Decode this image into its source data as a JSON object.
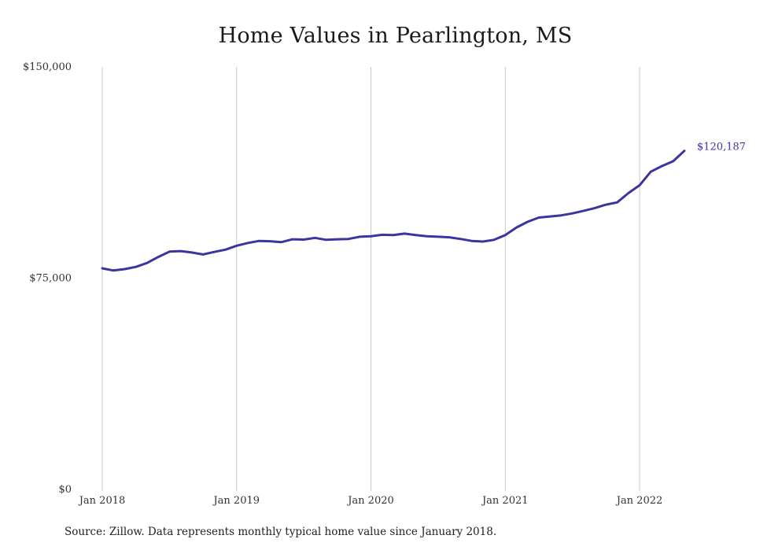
{
  "chart_data": {
    "type": "line",
    "title": "Home Values in Pearlington, MS",
    "xlabel": "",
    "ylabel": "",
    "ylim": [
      0,
      150000
    ],
    "y_ticks": [
      {
        "value": 0,
        "label": "$0"
      },
      {
        "value": 75000,
        "label": "$75,000"
      },
      {
        "value": 150000,
        "label": "$150,000"
      }
    ],
    "x_ticks": [
      {
        "value": "2018-01",
        "label": "Jan 2018"
      },
      {
        "value": "2019-01",
        "label": "Jan 2019"
      },
      {
        "value": "2020-01",
        "label": "Jan 2020"
      },
      {
        "value": "2021-01",
        "label": "Jan 2021"
      },
      {
        "value": "2022-01",
        "label": "Jan 2022"
      }
    ],
    "grid": "vertical",
    "line_color": "#3a35a0",
    "series": [
      {
        "x": [
          "2018-01",
          "2018-02",
          "2018-03",
          "2018-04",
          "2018-05",
          "2018-06",
          "2018-07",
          "2018-08",
          "2018-09",
          "2018-10",
          "2018-11",
          "2018-12",
          "2019-01",
          "2019-02",
          "2019-03",
          "2019-04",
          "2019-05",
          "2019-06",
          "2019-07",
          "2019-08",
          "2019-09",
          "2019-10",
          "2019-11",
          "2019-12",
          "2020-01",
          "2020-02",
          "2020-03",
          "2020-04",
          "2020-05",
          "2020-06",
          "2020-07",
          "2020-08",
          "2020-09",
          "2020-10",
          "2020-11",
          "2020-12",
          "2021-01",
          "2021-02",
          "2021-03",
          "2021-04",
          "2021-05",
          "2021-06",
          "2021-07",
          "2021-08",
          "2021-09",
          "2021-10",
          "2021-11",
          "2021-12",
          "2022-01",
          "2022-02",
          "2022-03",
          "2022-04",
          "2022-05"
        ],
        "values": [
          78500,
          77700,
          78200,
          79000,
          80400,
          82500,
          84400,
          84600,
          84100,
          83400,
          84300,
          85100,
          86500,
          87500,
          88200,
          88100,
          87800,
          88800,
          88700,
          89300,
          88600,
          88800,
          88900,
          89700,
          89900,
          90400,
          90300,
          90800,
          90300,
          89900,
          89700,
          89500,
          88900,
          88200,
          88000,
          88600,
          90300,
          93000,
          95000,
          96500,
          96900,
          97300,
          98000,
          98900,
          99900,
          101100,
          101900,
          105200,
          108000,
          112800,
          114800,
          116500,
          120187
        ]
      }
    ],
    "annotations": [
      {
        "label": "$120,187"
      }
    ]
  },
  "source_note": "Source: Zillow. Data represents monthly typical home value since January 2018."
}
